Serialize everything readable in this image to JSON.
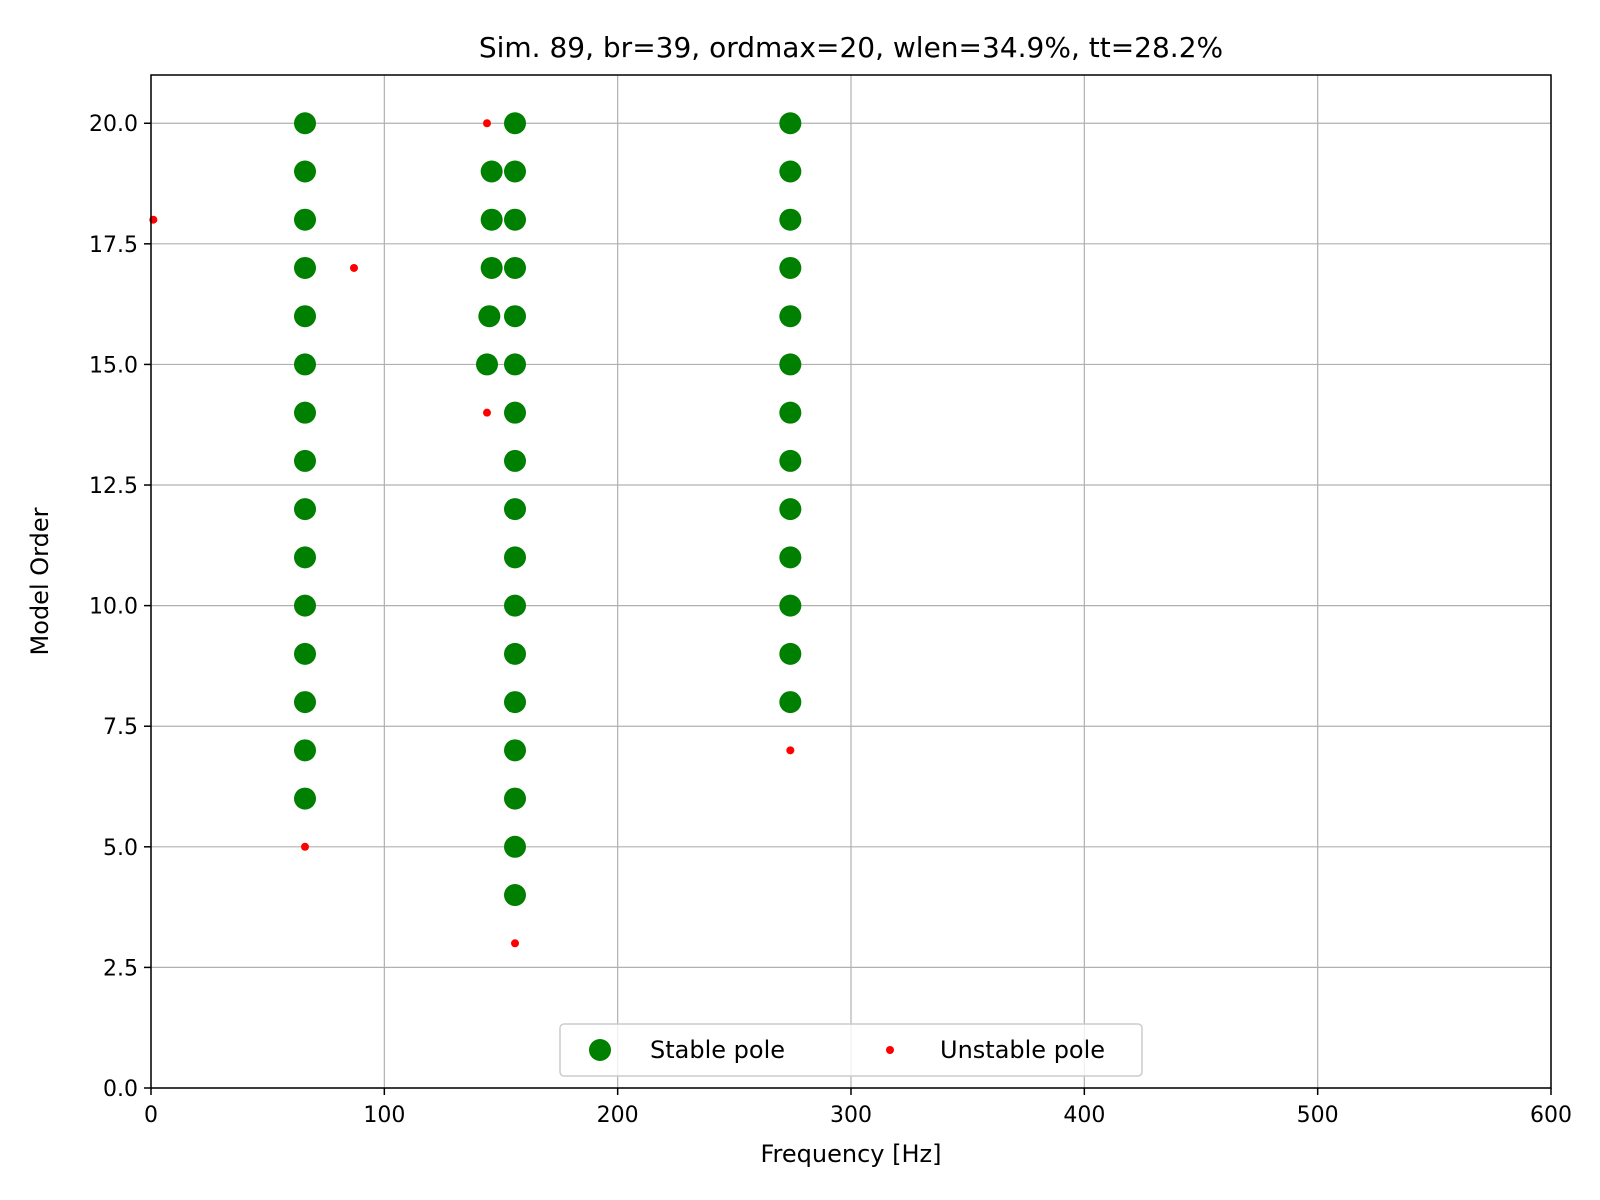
{
  "chart_data": {
    "type": "scatter",
    "title": "Sim. 89, br=39, ordmax=20, wlen=34.9%, tt=28.2%",
    "xlabel": "Frequency [Hz]",
    "ylabel": "Model Order",
    "xlim": [
      0,
      600
    ],
    "ylim": [
      0,
      21
    ],
    "xticks": [
      0,
      100,
      200,
      300,
      400,
      500,
      600
    ],
    "xtick_labels": [
      "0",
      "100",
      "200",
      "300",
      "400",
      "500",
      "600"
    ],
    "yticks": [
      0,
      2.5,
      5,
      7.5,
      10,
      12.5,
      15,
      17.5,
      20
    ],
    "ytick_labels": [
      "0.0",
      "2.5",
      "5.0",
      "7.5",
      "10.0",
      "12.5",
      "15.0",
      "17.5",
      "20.0"
    ],
    "grid": true,
    "legend": {
      "placement": "lower center",
      "ncol": 2
    },
    "series": [
      {
        "name": "Stable pole",
        "color": "#008000",
        "marker": "large-circle",
        "points": [
          [
            66,
            6
          ],
          [
            66,
            7
          ],
          [
            66,
            8
          ],
          [
            66,
            9
          ],
          [
            66,
            10
          ],
          [
            66,
            11
          ],
          [
            66,
            12
          ],
          [
            66,
            13
          ],
          [
            66,
            14
          ],
          [
            66,
            15
          ],
          [
            66,
            16
          ],
          [
            66,
            17
          ],
          [
            66,
            18
          ],
          [
            66,
            19
          ],
          [
            66,
            20
          ],
          [
            144,
            15
          ],
          [
            145,
            16
          ],
          [
            146,
            17
          ],
          [
            146,
            18
          ],
          [
            146,
            19
          ],
          [
            156,
            4
          ],
          [
            156,
            5
          ],
          [
            156,
            6
          ],
          [
            156,
            7
          ],
          [
            156,
            8
          ],
          [
            156,
            9
          ],
          [
            156,
            10
          ],
          [
            156,
            11
          ],
          [
            156,
            12
          ],
          [
            156,
            13
          ],
          [
            156,
            14
          ],
          [
            156,
            15
          ],
          [
            156,
            16
          ],
          [
            156,
            17
          ],
          [
            156,
            18
          ],
          [
            156,
            19
          ],
          [
            156,
            20
          ],
          [
            274,
            8
          ],
          [
            274,
            9
          ],
          [
            274,
            10
          ],
          [
            274,
            11
          ],
          [
            274,
            12
          ],
          [
            274,
            13
          ],
          [
            274,
            14
          ],
          [
            274,
            15
          ],
          [
            274,
            16
          ],
          [
            274,
            17
          ],
          [
            274,
            18
          ],
          [
            274,
            19
          ],
          [
            274,
            20
          ]
        ]
      },
      {
        "name": "Unstable pole",
        "color": "#ff0000",
        "marker": "small-dot",
        "points": [
          [
            1,
            18
          ],
          [
            87,
            17
          ],
          [
            66,
            5
          ],
          [
            144,
            20
          ],
          [
            144,
            14
          ],
          [
            156,
            3
          ],
          [
            274,
            7
          ]
        ]
      }
    ]
  }
}
